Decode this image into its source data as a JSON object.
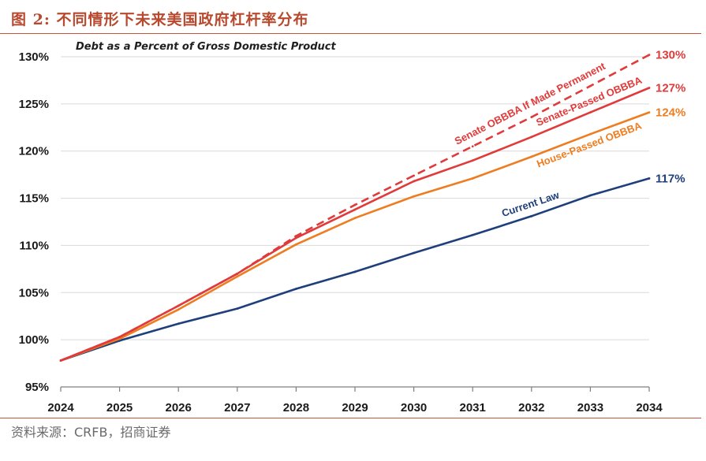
{
  "header": {
    "figure_title": "图 2:  不同情形下未来美国政府杠杆率分布"
  },
  "source": {
    "text": "资料来源：CRFB，招商证券"
  },
  "chart_data": {
    "type": "line",
    "title": "Debt as a Percent of Gross Domestic Product",
    "xlabel": "",
    "ylabel": "",
    "x": [
      2024,
      2025,
      2026,
      2027,
      2028,
      2029,
      2030,
      2031,
      2032,
      2033,
      2034
    ],
    "x_tick_labels": [
      "2024",
      "2025",
      "2026",
      "2027",
      "2028",
      "2029",
      "2030",
      "2031",
      "2032",
      "2033",
      "2034"
    ],
    "ylim": [
      95,
      130
    ],
    "y_ticks": [
      95,
      100,
      105,
      110,
      115,
      120,
      125,
      130
    ],
    "y_tick_labels": [
      "95%",
      "100%",
      "105%",
      "110%",
      "115%",
      "120%",
      "125%",
      "130%"
    ],
    "grid": true,
    "series": [
      {
        "name": "Current Law",
        "color": "#1f3f7a",
        "dashed": false,
        "end_label": "117%",
        "values": [
          97.8,
          99.9,
          101.7,
          103.3,
          105.4,
          107.2,
          109.2,
          111.1,
          113.1,
          115.3,
          117.1
        ]
      },
      {
        "name": "House-Passed OBBBA",
        "color": "#ee7d22",
        "dashed": false,
        "end_label": "124%",
        "values": [
          97.8,
          100.1,
          103.2,
          106.7,
          110.1,
          112.9,
          115.2,
          117.1,
          119.4,
          121.8,
          124.1
        ]
      },
      {
        "name": "Senate-Passed OBBBA",
        "color": "#e03a3a",
        "dashed": false,
        "end_label": "127%",
        "values": [
          97.8,
          100.3,
          103.6,
          107.0,
          110.8,
          113.8,
          116.8,
          119.0,
          121.5,
          124.1,
          126.7
        ]
      },
      {
        "name": "Senate OBBBA If Made Permanent",
        "color": "#e03a3a",
        "dashed": true,
        "end_label": "130%",
        "values": [
          97.8,
          100.3,
          103.6,
          107.0,
          111.0,
          114.3,
          117.4,
          120.5,
          123.6,
          126.9,
          130.2
        ]
      }
    ]
  }
}
